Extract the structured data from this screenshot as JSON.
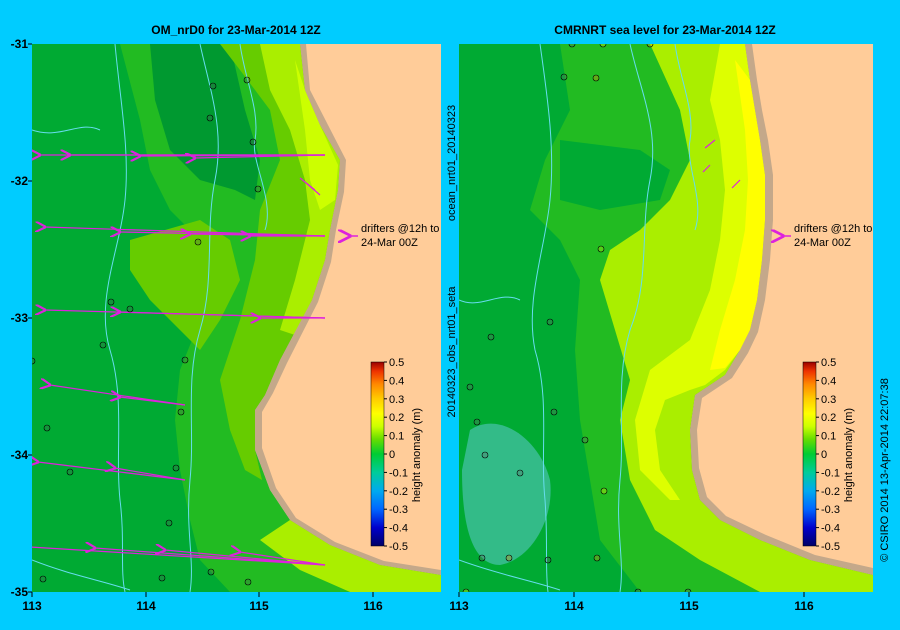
{
  "panels": {
    "left": {
      "title": "OM_nrD0 for 23-Mar-2014 12Z",
      "annotation_line1": "drifters @12h to",
      "annotation_line2": "24-Mar 00Z"
    },
    "right": {
      "title": "CMRNRT sea level  for 23-Mar-2014 12Z",
      "annotation_line1": "drifters @12h to",
      "annotation_line2": "24-Mar 00Z"
    }
  },
  "axes": {
    "y_ticks": [
      "-31",
      "-32",
      "-33",
      "-34",
      "-35"
    ],
    "x_ticks_left": [
      "113",
      "114",
      "115",
      "116"
    ],
    "x_ticks_right": [
      "113",
      "114",
      "115",
      "116"
    ]
  },
  "colorbar": {
    "label": "height anomaly (m)",
    "ticks": [
      "0.5",
      "0.4",
      "0.3",
      "0.2",
      "0.1",
      "0",
      "-0.1",
      "-0.2",
      "-0.3",
      "-0.4",
      "-0.5"
    ]
  },
  "side_text": {
    "vertical_label_1": "ocean_nrt01_20140323",
    "vertical_label_2": "20140323_obs_nrt01_seta",
    "credit": "© CSIRO 2014   13-Apr-2014 22:07:38"
  },
  "colors": {
    "background": "#00ccff",
    "land": "#ffcc99",
    "shelf": "#c4a88a",
    "contour": "#66ddee",
    "drifter": "#dd22dd"
  }
}
